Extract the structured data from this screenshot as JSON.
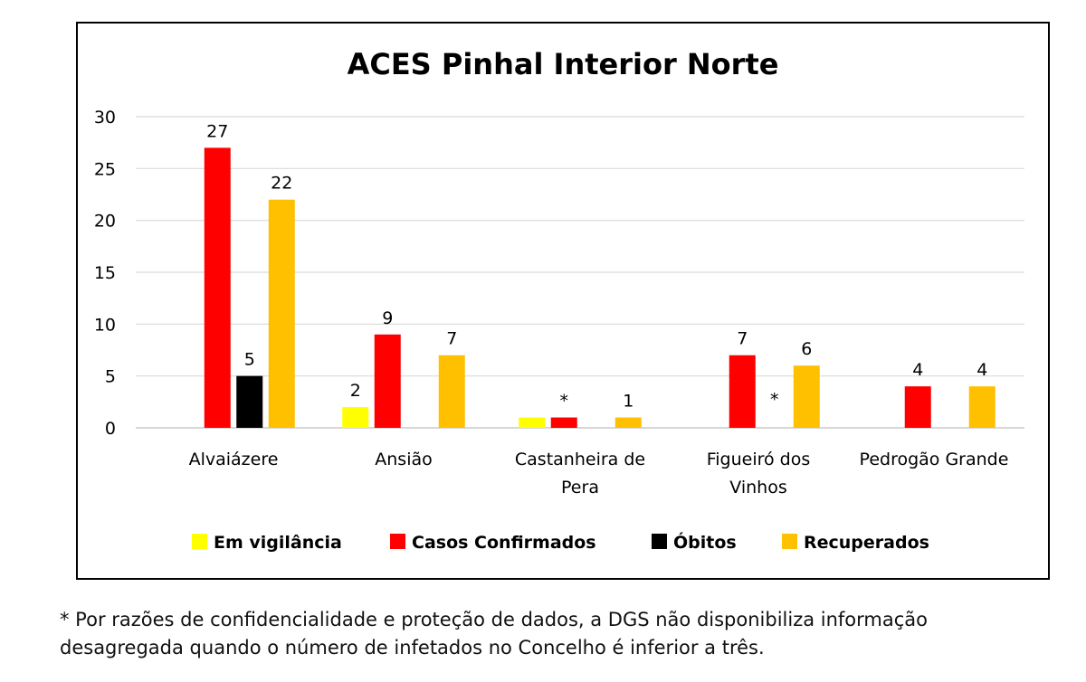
{
  "chart_data": {
    "type": "bar",
    "title": "ACES Pinhal Interior Norte",
    "xlabel": "",
    "ylabel": "",
    "ylim": [
      0,
      30
    ],
    "yticks": [
      0,
      5,
      10,
      15,
      20,
      25,
      30
    ],
    "grid": true,
    "legend_position": "bottom",
    "categories": [
      [
        "Alvaiázere"
      ],
      [
        "Ansião"
      ],
      [
        "Castanheira de",
        "Pera"
      ],
      [
        "Figueiró dos",
        "Vinhos"
      ],
      [
        "Pedrogão Grande"
      ]
    ],
    "series": [
      {
        "name": "Em vigilância",
        "color": "#ffff00",
        "values": [
          null,
          2,
          1,
          null,
          null
        ],
        "labels": [
          "",
          "2",
          "",
          "",
          ""
        ]
      },
      {
        "name": "Casos Confirmados",
        "color": "#ff0000",
        "values": [
          27,
          9,
          1,
          7,
          4
        ],
        "labels": [
          "27",
          "9",
          "*",
          "7",
          "4"
        ]
      },
      {
        "name": "Óbitos",
        "color": "#000000",
        "values": [
          5,
          null,
          null,
          null,
          null
        ],
        "labels": [
          "5",
          "",
          "",
          "*",
          ""
        ]
      },
      {
        "name": "Recuperados",
        "color": "#ffc000",
        "values": [
          22,
          7,
          1,
          6,
          4
        ],
        "labels": [
          "22",
          "7",
          "1",
          "6",
          "4"
        ]
      }
    ]
  },
  "footnote": {
    "line1": "* Por razões de confidencialidade e proteção de dados, a DGS não disponibiliza informação",
    "line2": "desagregada quando o número de infetados no Concelho é inferior a três."
  }
}
